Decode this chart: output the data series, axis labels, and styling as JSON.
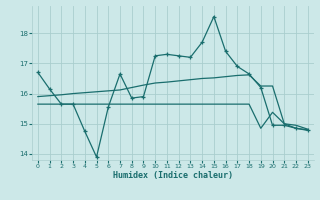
{
  "xlabel": "Humidex (Indice chaleur)",
  "bg_color": "#cce8e8",
  "grid_color": "#aacece",
  "line_color": "#1a6e6e",
  "x_ticks": [
    0,
    1,
    2,
    3,
    4,
    5,
    6,
    7,
    8,
    9,
    10,
    11,
    12,
    13,
    14,
    15,
    16,
    17,
    18,
    19,
    20,
    21,
    22,
    23
  ],
  "ylim": [
    13.8,
    18.9
  ],
  "yticks": [
    14,
    15,
    16,
    17,
    18
  ],
  "line1_y": [
    16.7,
    16.15,
    15.65,
    15.65,
    14.75,
    13.9,
    15.55,
    16.65,
    15.85,
    15.9,
    17.25,
    17.3,
    17.25,
    17.2,
    17.7,
    18.55,
    17.4,
    16.9,
    16.65,
    16.2,
    14.95,
    14.95,
    14.85,
    14.8
  ],
  "line2_y": [
    15.9,
    15.93,
    15.96,
    16.0,
    16.03,
    16.06,
    16.09,
    16.12,
    16.2,
    16.28,
    16.35,
    16.38,
    16.42,
    16.46,
    16.5,
    16.52,
    16.56,
    16.6,
    16.62,
    16.25,
    16.25,
    15.0,
    14.95,
    14.82
  ],
  "line3_y": [
    15.65,
    15.65,
    15.65,
    15.65,
    15.65,
    15.65,
    15.65,
    15.65,
    15.65,
    15.65,
    15.65,
    15.65,
    15.65,
    15.65,
    15.65,
    15.65,
    15.65,
    15.65,
    15.65,
    14.85,
    15.38,
    15.0,
    14.85,
    14.78
  ]
}
